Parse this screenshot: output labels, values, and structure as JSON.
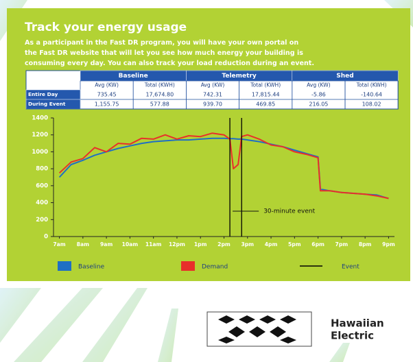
{
  "header": {
    "title": "Track your energy usage",
    "body": [
      "As a participant in the Fast DR program, you will have your own portal on",
      "the Fast DR website that will let you see how much energy your building is",
      "consuming every day. You can also track your load reduction during an event."
    ]
  },
  "table": {
    "groups": [
      "Baseline",
      "Telemetry",
      "Shed"
    ],
    "subheaders": [
      "Avg (KW)",
      "Total (KWH)",
      "Avg (KW)",
      "Total (KWH)",
      "Avg (KW)",
      "Total (KWH)"
    ],
    "rows": [
      {
        "label": "Entire Day",
        "cells": [
          "735.45",
          "17,674.80",
          "742.31",
          "17,815.44",
          "-5.86",
          "-140.64"
        ]
      },
      {
        "label": "During Event",
        "cells": [
          "1,155.75",
          "577.88",
          "939.70",
          "469.85",
          "216.05",
          "108.02"
        ]
      }
    ]
  },
  "chart_data": {
    "type": "line",
    "x": [
      7,
      7.5,
      8,
      8.5,
      9,
      9.5,
      10,
      10.5,
      11,
      11.5,
      12,
      12.5,
      13,
      13.5,
      14,
      14.25,
      14.4,
      14.6,
      14.75,
      15,
      15.5,
      16,
      16.5,
      17,
      17.5,
      18,
      18.1,
      18.5,
      19,
      19.5,
      20,
      20.5,
      21
    ],
    "series": [
      {
        "name": "Baseline",
        "color": "#1f6fc4",
        "values": [
          700,
          850,
          900,
          960,
          1000,
          1040,
          1070,
          1100,
          1120,
          1130,
          1140,
          1140,
          1150,
          1160,
          1160,
          1155,
          1155,
          1150,
          1150,
          1140,
          1120,
          1090,
          1060,
          1020,
          980,
          940,
          560,
          540,
          520,
          510,
          500,
          490,
          450
        ]
      },
      {
        "name": "Demand",
        "color": "#e8302a",
        "values": [
          750,
          880,
          920,
          1050,
          1000,
          1100,
          1090,
          1160,
          1150,
          1200,
          1150,
          1190,
          1180,
          1220,
          1200,
          1150,
          800,
          850,
          1180,
          1200,
          1150,
          1080,
          1060,
          1000,
          970,
          930,
          540,
          540,
          520,
          510,
          500,
          480,
          450
        ]
      }
    ],
    "event": {
      "name": "Event",
      "color": "#000000",
      "x": [
        14.25,
        14.75
      ]
    },
    "annotation": "30-minute event",
    "xlim": [
      6.75,
      21.25
    ],
    "xticks": [
      {
        "value": 7,
        "label": "7am"
      },
      {
        "value": 8,
        "label": "8am"
      },
      {
        "value": 9,
        "label": "9am"
      },
      {
        "value": 10,
        "label": "10am"
      },
      {
        "value": 11,
        "label": "11am"
      },
      {
        "value": 12,
        "label": "12pm"
      },
      {
        "value": 13,
        "label": "1pm"
      },
      {
        "value": 14,
        "label": "2pm"
      },
      {
        "value": 15,
        "label": "3pm"
      },
      {
        "value": 16,
        "label": "4pm"
      },
      {
        "value": 17,
        "label": "5pm"
      },
      {
        "value": 18,
        "label": "6pm"
      },
      {
        "value": 19,
        "label": "7pm"
      },
      {
        "value": 20,
        "label": "8pm"
      },
      {
        "value": 21,
        "label": "9pm"
      }
    ],
    "ylim": [
      0,
      1400
    ],
    "yticks": [
      0,
      200,
      400,
      600,
      800,
      1000,
      1200,
      1400
    ],
    "grid": false
  },
  "logo": {
    "lines": [
      "Hawaiian",
      "Electric"
    ]
  }
}
